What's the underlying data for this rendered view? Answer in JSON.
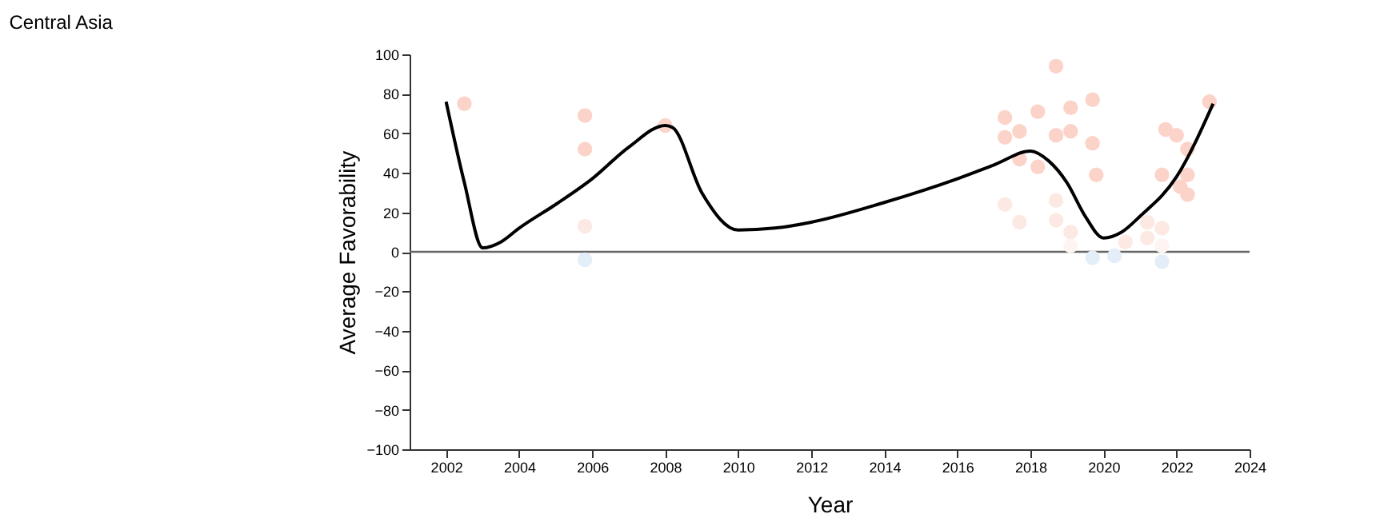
{
  "chart_data": {
    "type": "scatter",
    "title": "Central Asia",
    "xlabel": "Year",
    "ylabel": "Average Favorability",
    "xlim": [
      2001,
      2024
    ],
    "xticks": [
      2002,
      2004,
      2006,
      2008,
      2010,
      2012,
      2014,
      2016,
      2018,
      2020,
      2022,
      2024
    ],
    "ylim": [
      -100,
      100
    ],
    "yticks": [
      -100,
      -80,
      -60,
      -40,
      -20,
      0,
      20,
      40,
      60,
      80,
      100
    ],
    "grid": false,
    "marker": "circle",
    "ref_lines": [
      {
        "axis": "y",
        "value": 0,
        "color": "#666666"
      }
    ],
    "series": [
      {
        "type": "scatter",
        "x": [
          2002.5,
          2005.8,
          2005.8,
          2005.8,
          2005.8,
          2008,
          2017.3,
          2017.3,
          2017.3,
          2017.7,
          2017.7,
          2017.7,
          2018.2,
          2018.2,
          2018.7,
          2018.7,
          2018.7,
          2018.7,
          2019.1,
          2019.1,
          2019.1,
          2019.1,
          2019.7,
          2019.7,
          2019.7,
          2019.8,
          2020.3,
          2020.6,
          2021.2,
          2021.2,
          2021.6,
          2021.6,
          2021.6,
          2021.6,
          2021.7,
          2022.0,
          2022.1,
          2022.3,
          2022.3,
          2022.3,
          2022.9
        ],
        "values": [
          75,
          69,
          52,
          13,
          -4,
          64,
          68,
          58,
          24,
          61,
          47,
          15,
          71,
          43,
          94,
          59,
          26,
          16,
          73,
          61,
          10,
          3,
          77,
          55,
          -3,
          39,
          -2,
          5,
          15,
          7,
          12,
          3,
          39,
          -5,
          62,
          59,
          33,
          52,
          39,
          29,
          76
        ],
        "colors": [
          "#fcd3c8",
          "#fcd3c8",
          "#fcd3c8",
          "#fde9e3",
          "#e4eef8",
          "#fcd3c8",
          "#fcd3c8",
          "#fcd3c8",
          "#fde9e3",
          "#fcd3c8",
          "#fcd3c8",
          "#fde9e3",
          "#fcd3c8",
          "#fcd3c8",
          "#fcd3c8",
          "#fcd3c8",
          "#fde9e3",
          "#fde9e3",
          "#fcd3c8",
          "#fcd3c8",
          "#fde9e3",
          "#fef4f1",
          "#fcd3c8",
          "#fcd3c8",
          "#e4eef8",
          "#fcd3c8",
          "#e4eef8",
          "#fde9e3",
          "#fde9e3",
          "#fde9e3",
          "#fde9e3",
          "#fef4f1",
          "#fcd3c8",
          "#e4eef8",
          "#fcd3c8",
          "#fcd3c8",
          "#fcd3c8",
          "#fcd3c8",
          "#fcd3c8",
          "#fcd3c8",
          "#fcd3c8"
        ]
      },
      {
        "type": "line",
        "color": "#000000",
        "marker": "none",
        "line_style": "solid",
        "x": [
          2002,
          2002.5,
          2003,
          2003.5,
          2004,
          2005,
          2006,
          2007,
          2008,
          2008.2,
          2009,
          2010,
          2011,
          2012,
          2014,
          2016,
          2017,
          2018,
          2018.5,
          2019,
          2019.5,
          2020,
          2020.5,
          2021,
          2022,
          2023
        ],
        "values": [
          76,
          35,
          2,
          5,
          12,
          24,
          37,
          53,
          64,
          63,
          30,
          11,
          12,
          15,
          25,
          37,
          44,
          51,
          46,
          35,
          18,
          7,
          10,
          18,
          38,
          75
        ]
      }
    ]
  }
}
